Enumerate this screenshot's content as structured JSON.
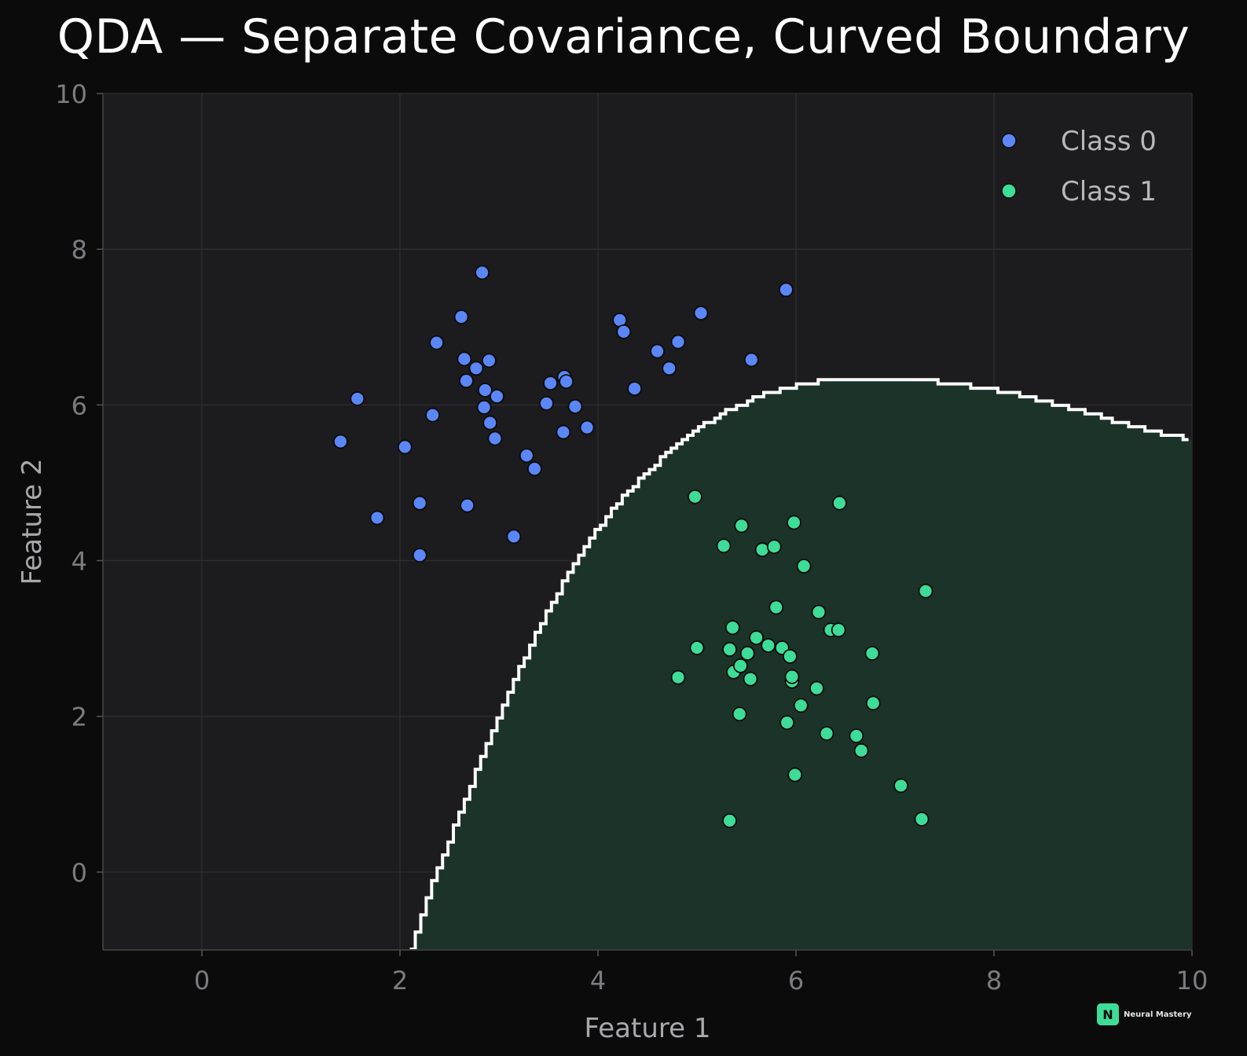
{
  "chart_data": {
    "type": "scatter",
    "title": "QDA — Separate Covariance, Curved Boundary",
    "xlabel": "Feature 1",
    "ylabel": "Feature 2",
    "xlim": [
      -1,
      10
    ],
    "ylim": [
      -1,
      10
    ],
    "xticks": [
      "0",
      "2",
      "4",
      "6",
      "8",
      "10"
    ],
    "yticks": [
      "0",
      "2",
      "4",
      "6",
      "8",
      "10"
    ],
    "grid": true,
    "legend_position": "top-right",
    "colors": {
      "background": "#0b0b0b",
      "plot_background": "#1c1c1e",
      "class0": "#5b86f7",
      "class1": "#3ddc97",
      "region1": "#1b3329",
      "boundary": "#ffffff",
      "grid": "#2c2c2f"
    },
    "series": [
      {
        "name": "Class 0",
        "points": [
          [
            1.4,
            5.53
          ],
          [
            1.57,
            6.08
          ],
          [
            1.77,
            4.55
          ],
          [
            2.05,
            5.46
          ],
          [
            2.2,
            4.74
          ],
          [
            2.2,
            4.07
          ],
          [
            2.33,
            5.87
          ],
          [
            2.37,
            6.8
          ],
          [
            2.62,
            7.13
          ],
          [
            2.65,
            6.59
          ],
          [
            2.67,
            6.31
          ],
          [
            2.68,
            4.71
          ],
          [
            2.77,
            6.47
          ],
          [
            2.83,
            7.7
          ],
          [
            2.85,
            5.97
          ],
          [
            2.86,
            6.19
          ],
          [
            2.9,
            6.57
          ],
          [
            2.91,
            5.77
          ],
          [
            2.96,
            5.57
          ],
          [
            2.98,
            6.11
          ],
          [
            3.15,
            4.31
          ],
          [
            3.28,
            5.35
          ],
          [
            3.36,
            5.18
          ],
          [
            3.48,
            6.02
          ],
          [
            3.52,
            6.28
          ],
          [
            3.65,
            5.65
          ],
          [
            3.66,
            6.36
          ],
          [
            3.68,
            6.3
          ],
          [
            3.77,
            5.98
          ],
          [
            3.89,
            5.71
          ],
          [
            4.22,
            7.09
          ],
          [
            4.26,
            6.94
          ],
          [
            4.37,
            6.21
          ],
          [
            4.6,
            6.69
          ],
          [
            4.72,
            6.47
          ],
          [
            4.81,
            6.81
          ],
          [
            5.04,
            7.18
          ],
          [
            5.55,
            6.58
          ],
          [
            5.9,
            7.48
          ]
        ]
      },
      {
        "name": "Class 1",
        "points": [
          [
            4.81,
            2.5
          ],
          [
            4.98,
            4.82
          ],
          [
            5.0,
            2.88
          ],
          [
            5.27,
            4.19
          ],
          [
            5.33,
            2.86
          ],
          [
            5.36,
            3.14
          ],
          [
            5.37,
            2.57
          ],
          [
            5.43,
            2.03
          ],
          [
            5.44,
            2.65
          ],
          [
            5.45,
            4.45
          ],
          [
            5.51,
            2.81
          ],
          [
            5.54,
            2.48
          ],
          [
            5.6,
            3.01
          ],
          [
            5.66,
            4.14
          ],
          [
            5.72,
            2.91
          ],
          [
            5.78,
            4.18
          ],
          [
            5.8,
            3.4
          ],
          [
            5.86,
            2.88
          ],
          [
            5.91,
            1.92
          ],
          [
            5.94,
            2.77
          ],
          [
            5.96,
            2.45
          ],
          [
            5.96,
            2.51
          ],
          [
            5.98,
            4.49
          ],
          [
            5.99,
            1.25
          ],
          [
            6.05,
            2.14
          ],
          [
            6.08,
            3.93
          ],
          [
            6.21,
            2.36
          ],
          [
            6.23,
            3.34
          ],
          [
            6.31,
            1.78
          ],
          [
            6.35,
            3.11
          ],
          [
            6.43,
            3.11
          ],
          [
            6.44,
            4.74
          ],
          [
            6.61,
            1.75
          ],
          [
            6.66,
            1.56
          ],
          [
            6.77,
            2.81
          ],
          [
            6.78,
            2.17
          ],
          [
            7.06,
            1.11
          ],
          [
            7.27,
            0.68
          ],
          [
            7.31,
            3.61
          ],
          [
            5.33,
            0.66
          ]
        ]
      }
    ],
    "decision_boundary": {
      "description_class": "Class 1",
      "x": [
        2.1,
        2.3,
        2.5,
        2.7,
        2.9,
        3.1,
        3.3,
        3.5,
        3.7,
        3.9,
        4.1,
        4.3,
        4.5,
        4.7,
        4.9,
        5.1,
        5.3,
        5.5,
        5.7,
        5.9,
        6.1,
        6.3,
        6.5,
        6.8,
        7.1,
        7.4,
        7.7,
        8.0,
        8.3,
        8.6,
        8.9,
        9.2,
        9.5,
        9.8,
        10.0
      ],
      "y": [
        -1.0,
        -0.2,
        0.45,
        1.1,
        1.75,
        2.35,
        2.9,
        3.4,
        3.85,
        4.25,
        4.6,
        4.9,
        5.15,
        5.4,
        5.6,
        5.78,
        5.92,
        6.05,
        6.15,
        6.22,
        6.28,
        6.32,
        6.33,
        6.33,
        6.33,
        6.3,
        6.25,
        6.19,
        6.11,
        6.01,
        5.91,
        5.8,
        5.7,
        5.6,
        5.55
      ]
    }
  },
  "watermark": {
    "logo_letter": "N",
    "text": "Neural Mastery"
  }
}
